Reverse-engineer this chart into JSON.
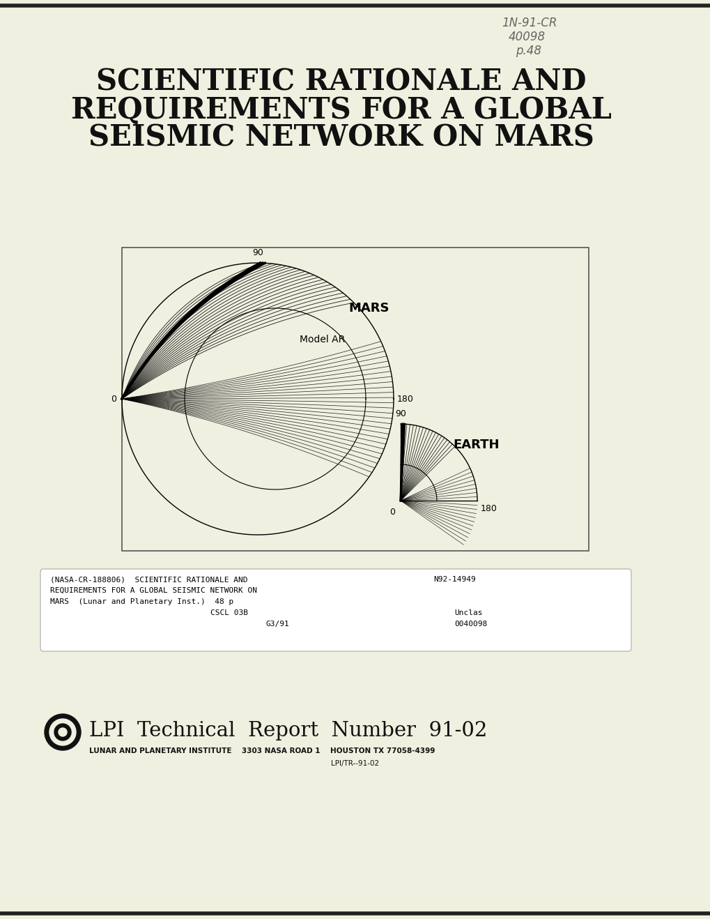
{
  "bg_color": "#f0f0e0",
  "title_line1": "SCIENTIFIC RATIONALE AND",
  "title_line2": "REQUIREMENTS FOR A GLOBAL",
  "title_line3": "SEISMIC NETWORK ON MARS",
  "title_fontsize": 30,
  "title_color": "#111111",
  "handwritten_line1": "1N-91-CR",
  "handwritten_line2": "40098",
  "handwritten_line3": "p.48",
  "diagram_label_mars": "MARS",
  "diagram_label_earth": "EARTH",
  "diagram_label_model": "Model AR",
  "nasa_box_text1": "(NASA-CR-188806)  SCIENTIFIC RATIONALE AND",
  "nasa_box_text2": "REQUIREMENTS FOR A GLOBAL SEISMIC NETWORK ON",
  "nasa_box_text3": "MARS  (Lunar and Planetary Inst.)  48 p",
  "nasa_box_text4a": "CSCL 03B",
  "nasa_box_text5a": "G3/91",
  "nasa_box_n92": "N92-14949",
  "nasa_box_unclas": "Unclas",
  "nasa_box_num": "0040098",
  "lpi_report_text": "LPI  Technical  Report  Number  91-02",
  "lpi_sub1": "LUNAR AND PLANETARY INSTITUTE    3303 NASA ROAD 1    HOUSTON TX 77058-4399",
  "lpi_sub2": "LPI/TR--91-02"
}
